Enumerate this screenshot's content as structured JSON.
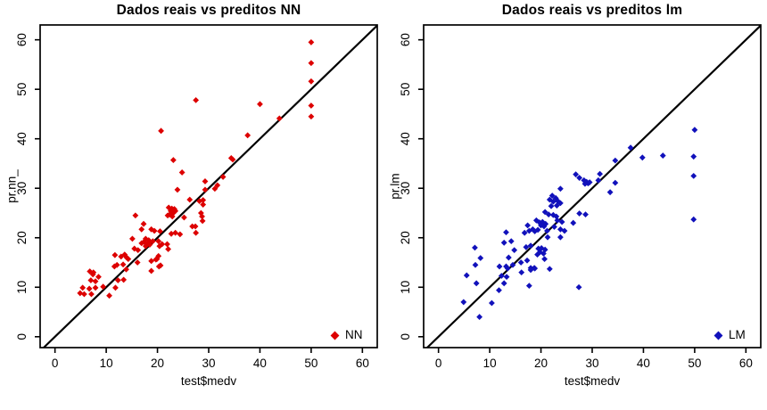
{
  "colors": {
    "nn": "#dd0000",
    "lm": "#1111bb",
    "identity_line": "#000000",
    "axis": "#000000",
    "background": "#ffffff"
  },
  "chart_data": [
    {
      "type": "scatter",
      "title": "Dados reais vs preditos NN",
      "xlabel": "test$medv",
      "ylabel": "pr.nn_",
      "xlim": [
        -2.9,
        62.9
      ],
      "ylim": [
        -2.2,
        63.0
      ],
      "xticks": [
        0,
        10,
        20,
        30,
        40,
        50,
        60
      ],
      "yticks": [
        0,
        10,
        20,
        30,
        40,
        50,
        60
      ],
      "grid": false,
      "reference_line": "y=x",
      "marker": "diamond",
      "color": "#dd0000",
      "legend": {
        "label": "NN",
        "position": "bottom-right"
      },
      "points": [
        [
          50,
          59.5
        ],
        [
          50,
          55.3
        ],
        [
          50,
          51.6
        ],
        [
          40,
          47
        ],
        [
          27.5,
          47.8
        ],
        [
          50,
          46.7
        ],
        [
          50,
          44.5
        ],
        [
          43.8,
          44.1
        ],
        [
          20.7,
          41.6
        ],
        [
          37.6,
          40.7
        ],
        [
          23.1,
          35.7
        ],
        [
          34.4,
          36.1
        ],
        [
          34.7,
          35.8
        ],
        [
          24.8,
          33.2
        ],
        [
          32.8,
          32.3
        ],
        [
          29.3,
          31.4
        ],
        [
          31.7,
          30.6
        ],
        [
          31.2,
          29.9
        ],
        [
          29.3,
          29.7
        ],
        [
          23.9,
          29.7
        ],
        [
          26.3,
          27.7
        ],
        [
          28.9,
          27.6
        ],
        [
          28.2,
          27.4
        ],
        [
          28.9,
          26.7
        ],
        [
          28.5,
          25
        ],
        [
          28.7,
          24.3
        ],
        [
          15.7,
          24.5
        ],
        [
          22.2,
          26.1
        ],
        [
          22.8,
          25.9
        ],
        [
          23.3,
          25.8
        ],
        [
          22.6,
          25.4
        ],
        [
          23.1,
          25
        ],
        [
          22.4,
          24.7
        ],
        [
          22,
          24.5
        ],
        [
          22.9,
          24.3
        ],
        [
          23.5,
          25.4
        ],
        [
          25.2,
          24.1
        ],
        [
          17.3,
          22.8
        ],
        [
          18.8,
          21.7
        ],
        [
          16.9,
          21.7
        ],
        [
          19.4,
          21.4
        ],
        [
          20.5,
          21.3
        ],
        [
          23.5,
          21
        ],
        [
          22.7,
          20.8
        ],
        [
          24.4,
          20.7
        ],
        [
          26.8,
          22.3
        ],
        [
          27.4,
          22.3
        ],
        [
          28.8,
          23.4
        ],
        [
          27.5,
          21
        ],
        [
          15.1,
          19.8
        ],
        [
          17.7,
          19.8
        ],
        [
          18.3,
          19.5
        ],
        [
          18.5,
          19.2
        ],
        [
          19.1,
          19.3
        ],
        [
          17.4,
          19.2
        ],
        [
          16.9,
          18.9
        ],
        [
          17.9,
          18.7
        ],
        [
          18.5,
          18.6
        ],
        [
          20.2,
          19.3
        ],
        [
          20.9,
          18.7
        ],
        [
          21.9,
          18.7
        ],
        [
          20.4,
          18.3
        ],
        [
          22.1,
          17.7
        ],
        [
          15.5,
          17.8
        ],
        [
          16.2,
          17.5
        ],
        [
          17.7,
          18.3
        ],
        [
          11.7,
          16.5
        ],
        [
          12.9,
          16.2
        ],
        [
          14,
          16
        ],
        [
          13.6,
          16.6
        ],
        [
          20.2,
          16.3
        ],
        [
          19.9,
          15.7
        ],
        [
          12.1,
          14.5
        ],
        [
          13.3,
          14.6
        ],
        [
          16.1,
          15
        ],
        [
          20.3,
          14.2
        ],
        [
          6.8,
          13.2
        ],
        [
          7.5,
          13
        ],
        [
          7.4,
          12.6
        ],
        [
          8.5,
          12.1
        ],
        [
          7,
          11.4
        ],
        [
          7.9,
          11.2
        ],
        [
          5.4,
          9.9
        ],
        [
          6.7,
          9.7
        ],
        [
          4.9,
          8.8
        ],
        [
          5.7,
          8.6
        ],
        [
          7.1,
          8.6
        ],
        [
          7.9,
          9.9
        ],
        [
          9.4,
          10.1
        ],
        [
          10.6,
          8.3
        ],
        [
          11.8,
          9.9
        ],
        [
          12.3,
          11.4
        ],
        [
          13.4,
          11.5
        ],
        [
          11.6,
          14.2
        ],
        [
          13.9,
          13.6
        ],
        [
          14.3,
          15.7
        ],
        [
          18.8,
          15.3
        ],
        [
          19.7,
          15.6
        ],
        [
          20.6,
          14.4
        ],
        [
          18.8,
          13.3
        ]
      ]
    },
    {
      "type": "scatter",
      "title": "Dados reais vs preditos lm",
      "xlabel": "test$medv",
      "ylabel": "pr.lm",
      "xlim": [
        -2.9,
        62.9
      ],
      "ylim": [
        -2.2,
        63.0
      ],
      "xticks": [
        0,
        10,
        20,
        30,
        40,
        50,
        60
      ],
      "yticks": [
        0,
        10,
        20,
        30,
        40,
        50,
        60
      ],
      "grid": false,
      "reference_line": "y=x",
      "marker": "diamond",
      "color": "#1111bb",
      "legend": {
        "label": "LM",
        "position": "bottom-right"
      },
      "points": [
        [
          50,
          41.8
        ],
        [
          37.5,
          38.2
        ],
        [
          39.8,
          36.2
        ],
        [
          43.8,
          36.6
        ],
        [
          49.8,
          36.4
        ],
        [
          34.5,
          35.6
        ],
        [
          49.8,
          32.5
        ],
        [
          31.5,
          32.9
        ],
        [
          26.8,
          32.8
        ],
        [
          27.5,
          32.1
        ],
        [
          28.4,
          31.6
        ],
        [
          28.9,
          31.3
        ],
        [
          29.2,
          31
        ],
        [
          29.5,
          31.2
        ],
        [
          28.6,
          30.9
        ],
        [
          31.2,
          31.6
        ],
        [
          34.5,
          31.1
        ],
        [
          23.8,
          29.9
        ],
        [
          22.2,
          28.5
        ],
        [
          22.9,
          28
        ],
        [
          21.7,
          27.7
        ],
        [
          22.4,
          27.3
        ],
        [
          23.3,
          27.4
        ],
        [
          23.8,
          27
        ],
        [
          23.1,
          26.5
        ],
        [
          22,
          26.4
        ],
        [
          33.5,
          29.2
        ],
        [
          27.5,
          24.9
        ],
        [
          28.7,
          24.7
        ],
        [
          20.8,
          25.2
        ],
        [
          21.5,
          24.7
        ],
        [
          22.4,
          24.6
        ],
        [
          23,
          24.3
        ],
        [
          19.1,
          23.5
        ],
        [
          19.7,
          23.1
        ],
        [
          20.3,
          23.2
        ],
        [
          20.9,
          22.8
        ],
        [
          20,
          22.5
        ],
        [
          20.6,
          22.3
        ],
        [
          17.4,
          22.5
        ],
        [
          16.8,
          21
        ],
        [
          17.7,
          21.4
        ],
        [
          18.4,
          21.7
        ],
        [
          18.8,
          21.3
        ],
        [
          19.4,
          21.6
        ],
        [
          21.2,
          21.4
        ],
        [
          22.6,
          22.2
        ],
        [
          23.8,
          21.7
        ],
        [
          24.6,
          21.4
        ],
        [
          23.2,
          23.5
        ],
        [
          24.1,
          23.2
        ],
        [
          26.3,
          23
        ],
        [
          13.2,
          21.1
        ],
        [
          12.8,
          19
        ],
        [
          14.2,
          19.3
        ],
        [
          14.8,
          17.5
        ],
        [
          21.3,
          20.1
        ],
        [
          23.8,
          20.1
        ],
        [
          18,
          18.4
        ],
        [
          17.1,
          18.1
        ],
        [
          19.5,
          17.8
        ],
        [
          20.1,
          17.9
        ],
        [
          20.8,
          17.6
        ],
        [
          19.8,
          17.1
        ],
        [
          20.5,
          16.8
        ],
        [
          19.3,
          16.6
        ],
        [
          7.1,
          18
        ],
        [
          8.2,
          15.9
        ],
        [
          7.2,
          14.5
        ],
        [
          11.9,
          14.2
        ],
        [
          13.7,
          16
        ],
        [
          16.1,
          15
        ],
        [
          18,
          13.9
        ],
        [
          18.7,
          13.9
        ],
        [
          21.7,
          13.7
        ],
        [
          49.8,
          23.7
        ],
        [
          5.5,
          12.4
        ],
        [
          7.4,
          10.8
        ],
        [
          4.9,
          7
        ],
        [
          10.4,
          6.8
        ],
        [
          8,
          4
        ],
        [
          13.2,
          14.2
        ],
        [
          12.8,
          10.8
        ],
        [
          11.8,
          9.4
        ],
        [
          12.3,
          12.3
        ],
        [
          13.3,
          12.1
        ],
        [
          13.5,
          13.8
        ],
        [
          14.5,
          14.5
        ],
        [
          16.2,
          13
        ],
        [
          17.7,
          10.3
        ],
        [
          18,
          13.5
        ],
        [
          18.8,
          13.8
        ],
        [
          17.3,
          15.4
        ],
        [
          20.7,
          15.7
        ],
        [
          27.4,
          10
        ]
      ]
    }
  ]
}
